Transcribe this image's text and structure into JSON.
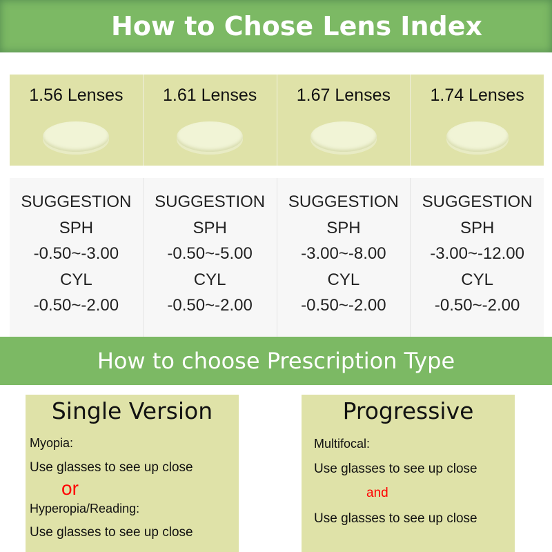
{
  "header": {
    "title": "How to Chose Lens Index"
  },
  "lenses": [
    {
      "label": "1.56 Lenses",
      "suggestion": "SUGGESTION",
      "sph_label": "SPH",
      "sph": "-0.50~-3.00",
      "cyl_label": "CYL",
      "cyl": "-0.50~-2.00"
    },
    {
      "label": "1.61 Lenses",
      "suggestion": "SUGGESTION",
      "sph_label": "SPH",
      "sph": "-0.50~-5.00",
      "cyl_label": "CYL",
      "cyl": "-0.50~-2.00"
    },
    {
      "label": "1.67 Lenses",
      "suggestion": "SUGGESTION",
      "sph_label": "SPH",
      "sph": "-3.00~-8.00",
      "cyl_label": "CYL",
      "cyl": "-0.50~-2.00"
    },
    {
      "label": "1.74 Lenses",
      "suggestion": "SUGGESTION",
      "sph_label": "SPH",
      "sph": "-3.00~-12.00",
      "cyl_label": "CYL",
      "cyl": "-0.50~-2.00"
    }
  ],
  "prescription": {
    "title": "How to choose Prescription Type",
    "single": {
      "title": "Single Version",
      "line1": "Myopia:",
      "line2": "Use glasses to see up close",
      "connector": "or",
      "line3": "Hyperopia/Reading:",
      "line4": "Use glasses to see up close"
    },
    "progressive": {
      "title": "Progressive",
      "line1": "Multifocal:",
      "line2": "Use glasses to see up close",
      "connector": "and",
      "line3": "Use glasses to see up close"
    }
  },
  "colors": {
    "band": "#7cb964",
    "panel": "#dfe2a8",
    "connector": "#ff0000"
  }
}
